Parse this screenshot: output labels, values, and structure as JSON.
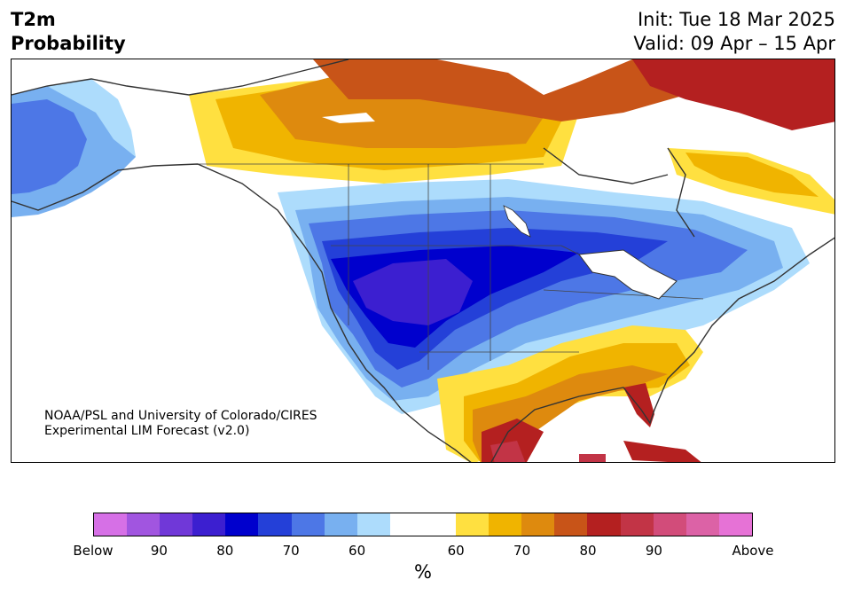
{
  "header": {
    "variable": "T2m",
    "product": "Probability",
    "init": "Init: Tue 18 Mar 2025",
    "valid": "Valid: 09 Apr – 15 Apr"
  },
  "credit": {
    "line1": "NOAA/PSL and University of Colorado/CIRES",
    "line2": "Experimental LIM Forecast (v2.0)"
  },
  "colorbar": {
    "below_colors": [
      "#d670e6",
      "#a155e0",
      "#7038d8",
      "#3c1fd0",
      "#0000cd",
      "#2440d8",
      "#4d77e6",
      "#78b0f0",
      "#addcfc"
    ],
    "neutral_colors": [
      "#ffffff",
      "#ffffff"
    ],
    "above_colors": [
      "#ffe040",
      "#f0b400",
      "#de8a0e",
      "#c85418",
      "#b42020",
      "#c23446",
      "#d24c7a",
      "#dc62a6",
      "#e672d6"
    ],
    "tick_labels": [
      "Below",
      "90",
      "80",
      "70",
      "60",
      "60",
      "70",
      "80",
      "90",
      "Above"
    ],
    "unit": "%"
  },
  "legend_meaning": {
    "blue_purple": "Below",
    "yellow_red_pink": "Above"
  }
}
